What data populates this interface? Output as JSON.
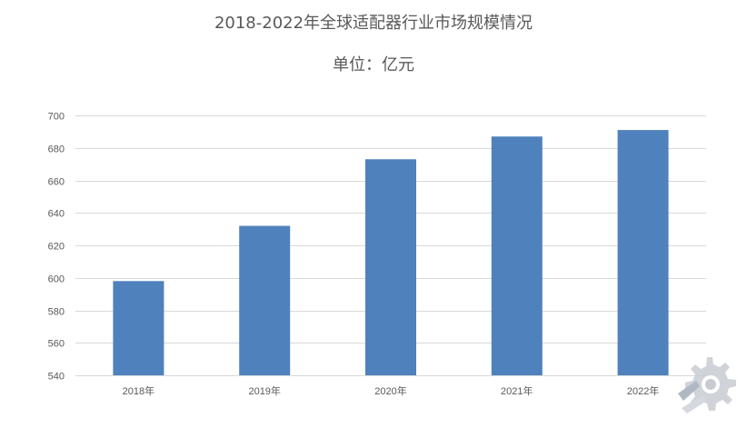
{
  "chart_data": {
    "type": "bar",
    "title": "2018-2022年全球适配器行业市场规模情况",
    "subtitle": "单位：亿元",
    "categories": [
      "2018年",
      "2019年",
      "2020年",
      "2021年",
      "2022年"
    ],
    "values": [
      598,
      632,
      673,
      687,
      691
    ],
    "ylim": [
      540,
      700
    ],
    "yticks": [
      540,
      560,
      580,
      600,
      620,
      640,
      660,
      680,
      700
    ],
    "grid": true,
    "legend": "none",
    "colors": {
      "bar": "#4f81bd",
      "grid": "#d9d9d9",
      "text": "#595959"
    }
  },
  "watermark": {
    "icon": "gear-logo-icon"
  }
}
